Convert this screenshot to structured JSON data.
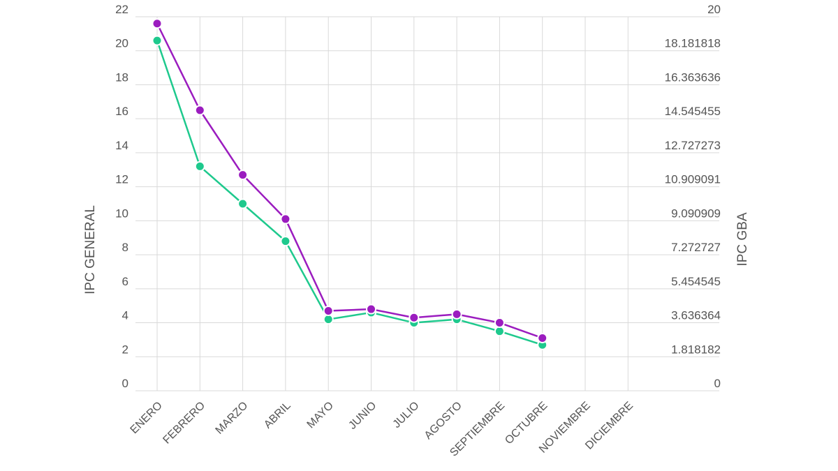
{
  "chart_data": {
    "type": "line",
    "categories": [
      "ENERO",
      "FEBRERO",
      "MARZO",
      "ABRIL",
      "MAYO",
      "JUNIO",
      "JULIO",
      "AGOSTO",
      "SEPTIEMBRE",
      "OCTUBRE",
      "NOVIEMBRE",
      "DICIEMBRE"
    ],
    "ylabel": "IPC GENERAL",
    "y2label": "IPC GBA",
    "ylim": [
      0,
      22
    ],
    "y2lim": [
      0,
      20
    ],
    "yticks": [
      "0",
      "2",
      "4",
      "6",
      "8",
      "10",
      "12",
      "14",
      "16",
      "18",
      "20",
      "22"
    ],
    "y2ticks": [
      "0",
      "1.818182",
      "3.636364",
      "5.454545",
      "7.272727",
      "9.090909",
      "10.909091",
      "12.727273",
      "14.545455",
      "16.363636",
      "18.181818",
      "20"
    ],
    "grid": true,
    "series": [
      {
        "axis": "left",
        "color": "#9b1cbf",
        "values": [
          21.6,
          16.5,
          12.7,
          10.1,
          4.7,
          4.8,
          4.3,
          4.5,
          4.0,
          3.1,
          null,
          null
        ]
      },
      {
        "axis": "left",
        "color": "#1ec98d",
        "values": [
          20.6,
          13.2,
          11.0,
          8.8,
          4.2,
          4.6,
          4.0,
          4.2,
          3.5,
          2.7,
          null,
          null
        ]
      }
    ]
  }
}
